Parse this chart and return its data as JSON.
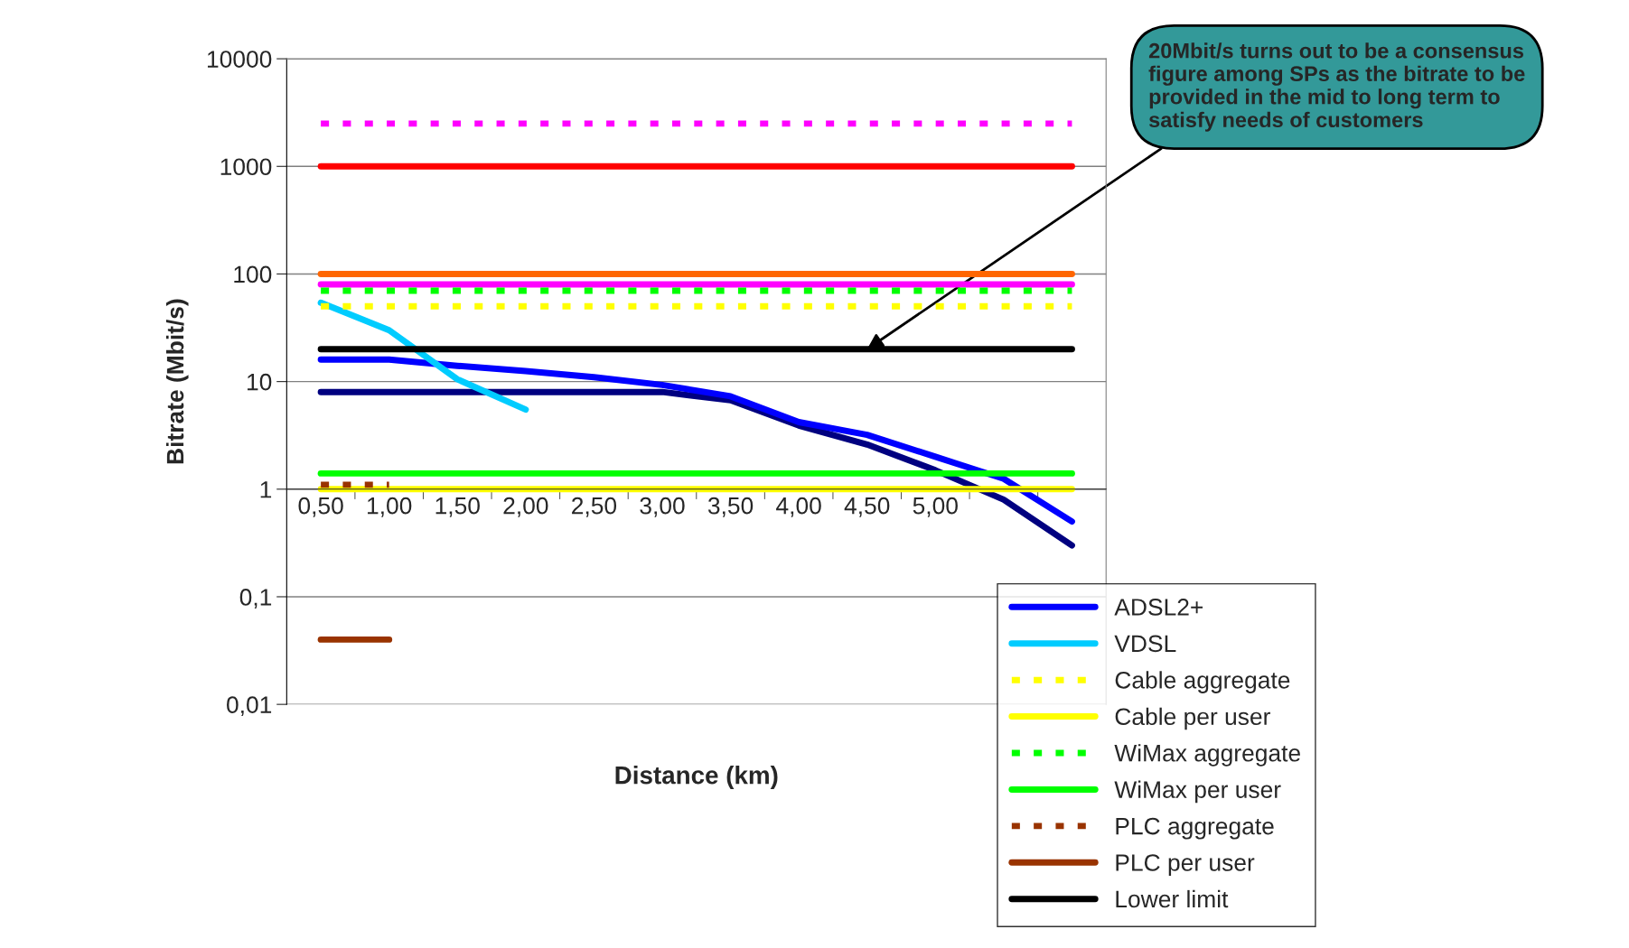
{
  "chart_data": {
    "type": "line",
    "xlabel": "Distance (km)",
    "ylabel": "Bitrate (Mbit/s)",
    "categories": [
      "0,50",
      "1,00",
      "1,50",
      "2,00",
      "2,50",
      "3,00",
      "3,50",
      "4,00",
      "4,50",
      "5,00",
      null,
      null
    ],
    "log": true,
    "ylim": [
      0.01,
      10000
    ],
    "yticks": [
      {
        "value": 0.01,
        "label": "0,01"
      },
      {
        "value": 0.1,
        "label": "0,1"
      },
      1,
      10,
      100,
      1000,
      10000
    ],
    "grid": "y",
    "legend": "right",
    "marker": "none",
    "series": [
      {
        "color": "#ff00ff",
        "line_style": "dotted",
        "values": [
          2500,
          2500,
          2500,
          2500,
          2500,
          2500,
          2500,
          2500,
          2500,
          2500,
          2500,
          2500
        ]
      },
      {
        "color": "#ff0000",
        "line_style": "solid",
        "values": [
          1000,
          1000,
          1000,
          1000,
          1000,
          1000,
          1000,
          1000,
          1000,
          1000,
          1000,
          1000
        ]
      },
      {
        "color": "#ff6600",
        "line_style": "solid",
        "values": [
          100,
          100,
          100,
          100,
          100,
          100,
          100,
          100,
          100,
          100,
          100,
          100
        ]
      },
      {
        "color": "#ff00ff",
        "line_style": "solid",
        "values": [
          80,
          80,
          80,
          80,
          80,
          80,
          80,
          80,
          80,
          80,
          80,
          80
        ]
      },
      {
        "color": "#000080",
        "line_style": "solid",
        "values": [
          8,
          8,
          8,
          8,
          8,
          8,
          6.7,
          3.9,
          2.6,
          1.5,
          0.8,
          0.3
        ]
      },
      {
        "name": "ADSL2+",
        "color": "#0000ff",
        "line_style": "solid",
        "values": [
          16,
          16,
          14,
          12.5,
          11,
          9.3,
          7.3,
          4.2,
          3.2,
          2,
          1.25,
          0.5
        ]
      },
      {
        "name": "VDSL",
        "color": "#00ccff",
        "line_style": "solid",
        "values": [
          54,
          30,
          10.5,
          5.5,
          null,
          null,
          null,
          null,
          null,
          null,
          null,
          null
        ]
      },
      {
        "name": "Cable aggregate",
        "color": "#ffff00",
        "line_style": "dotted",
        "values": [
          50,
          50,
          50,
          50,
          50,
          50,
          50,
          50,
          50,
          50,
          50,
          50
        ]
      },
      {
        "name": "Cable per user",
        "color": "#ffff00",
        "line_style": "solid",
        "values": [
          1,
          1,
          1,
          1,
          1,
          1,
          1,
          1,
          1,
          1,
          1,
          1
        ]
      },
      {
        "name": "WiMax aggregate",
        "color": "#00ff00",
        "line_style": "dotted",
        "values": [
          70,
          70,
          70,
          70,
          70,
          70,
          70,
          70,
          70,
          70,
          70,
          70
        ]
      },
      {
        "name": "WiMax per user",
        "color": "#00ff00",
        "line_style": "solid",
        "values": [
          1.4,
          1.4,
          1.4,
          1.4,
          1.4,
          1.4,
          1.4,
          1.4,
          1.4,
          1.4,
          1.4,
          1.4
        ]
      },
      {
        "name": "PLC aggregate",
        "color": "#993300",
        "line_style": "dotted",
        "values": [
          1.1,
          1.1,
          null,
          null,
          null,
          null,
          null,
          null,
          null,
          null,
          null,
          null
        ]
      },
      {
        "name": "PLC per user",
        "color": "#993300",
        "line_style": "solid",
        "values": [
          0.04,
          0.04,
          null,
          null,
          null,
          null,
          null,
          null,
          null,
          null,
          null,
          null
        ]
      },
      {
        "name": "Lower limit",
        "color": "#000000",
        "line_style": "solid",
        "values": [
          20,
          20,
          20,
          20,
          20,
          20,
          20,
          20,
          20,
          20,
          20,
          20
        ]
      }
    ],
    "annotations": [
      {
        "text": "20Mbit/s turns out to be a consensus figure among SPs as the bitrate to be provided in the mid to long term to satisfy needs of customers",
        "x": "4,50",
        "y": 20
      }
    ]
  }
}
